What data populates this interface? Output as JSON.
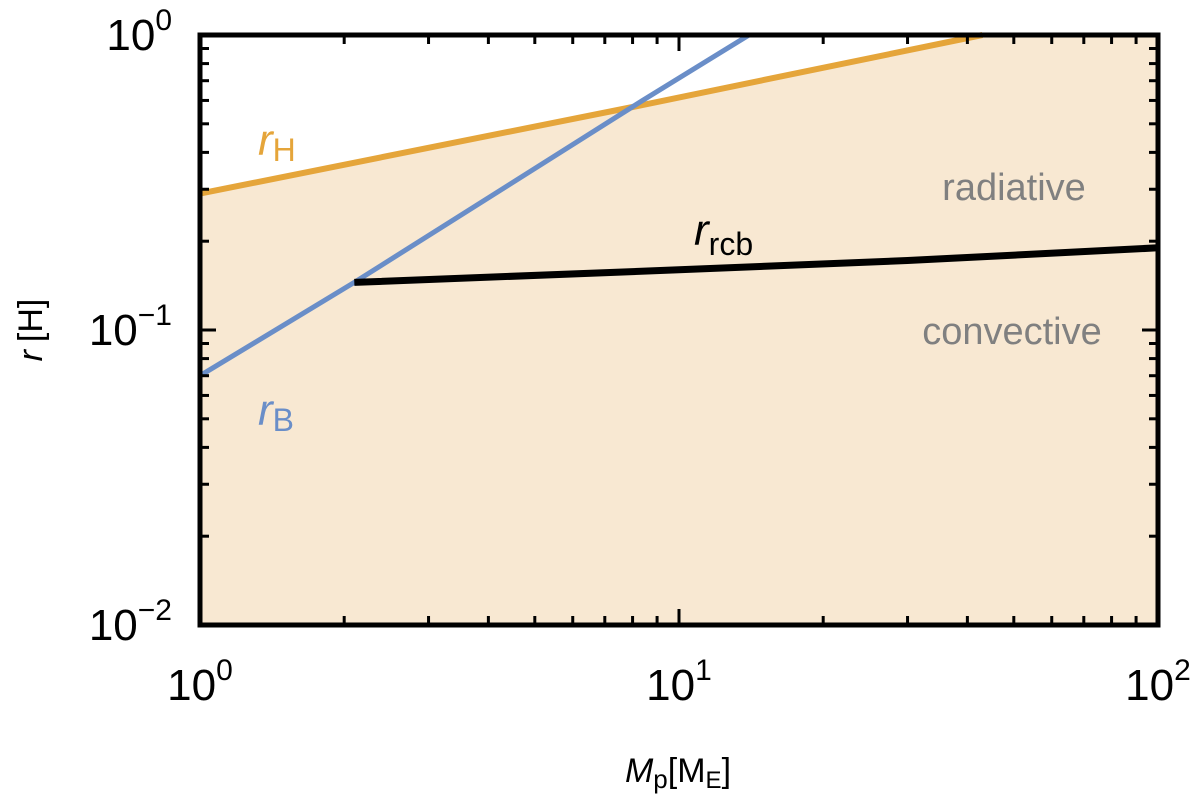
{
  "chart_data": {
    "type": "line",
    "xscale": "log",
    "yscale": "log",
    "xlim": [
      1,
      100
    ],
    "ylim": [
      0.01,
      1
    ],
    "x_ticks": [
      {
        "base": "10",
        "exp": "0"
      },
      {
        "base": "10",
        "exp": "1"
      },
      {
        "base": "10",
        "exp": "2"
      }
    ],
    "y_ticks": [
      {
        "base": "10",
        "exp": "−2"
      },
      {
        "base": "10",
        "exp": "−1"
      },
      {
        "base": "10",
        "exp": "0"
      }
    ],
    "xlabel": {
      "main": "M",
      "sub": "p",
      "unit_open": "[M",
      "unit_sub": "E",
      "unit_close": "]"
    },
    "ylabel": {
      "main": "r",
      "unit": "[H]"
    },
    "grid": false,
    "fill_color": "#f8e8d2",
    "series": [
      {
        "label_main": "r",
        "label_sub": "H",
        "color": "#e5a53a",
        "x": [
          1,
          8,
          43
        ],
        "y": [
          0.29,
          0.57,
          1.0
        ]
      },
      {
        "label_main": "r",
        "label_sub": "B",
        "color": "#6a8ec8",
        "x": [
          1,
          2.1,
          8.4,
          14
        ],
        "y": [
          0.07,
          0.145,
          0.6,
          1.0
        ]
      },
      {
        "label_main": "r",
        "label_sub": "rcb",
        "color": "#000000",
        "x": [
          2.1,
          10,
          30,
          100
        ],
        "y": [
          0.145,
          0.16,
          0.172,
          0.19
        ]
      }
    ],
    "regions": [
      {
        "label": "radiative",
        "x": 42,
        "y": 0.3
      },
      {
        "label": "convective",
        "x": 42,
        "y": 0.1
      }
    ]
  }
}
